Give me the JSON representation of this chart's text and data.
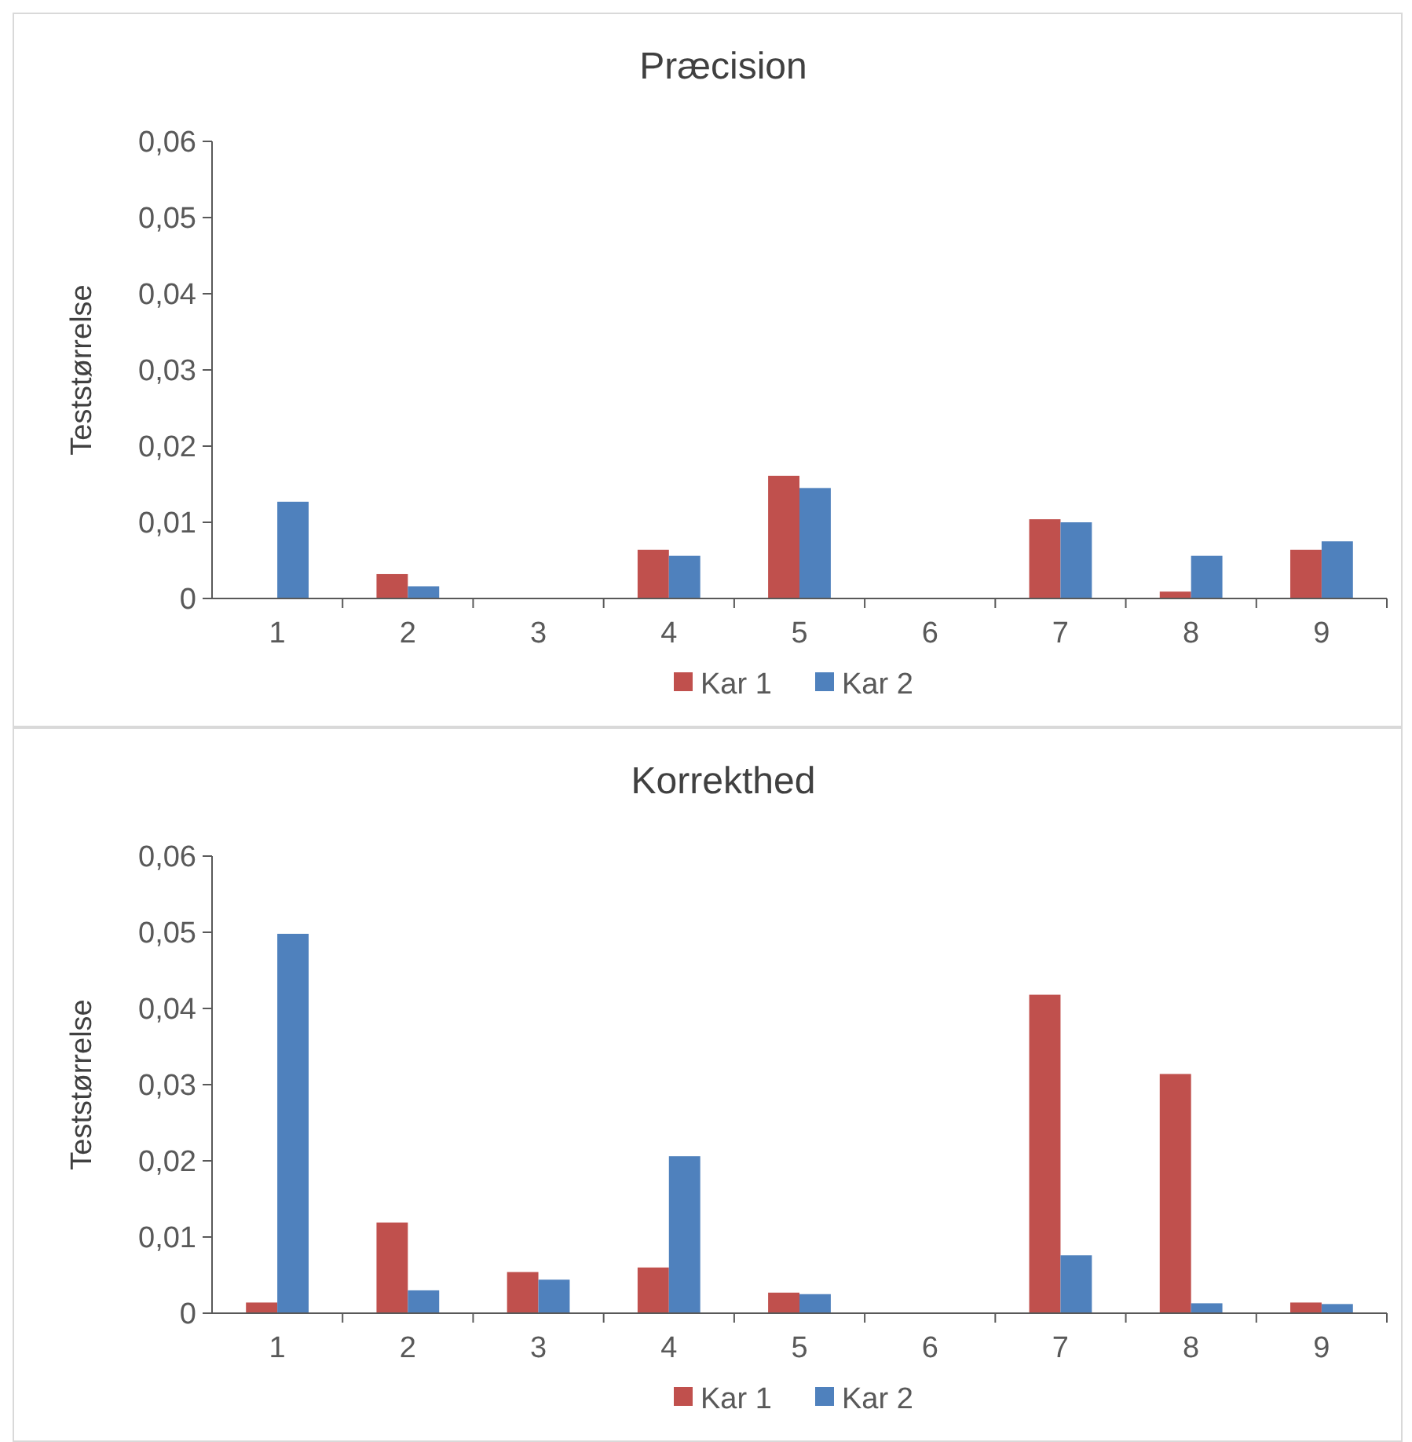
{
  "chart_data": [
    {
      "type": "bar",
      "title": "Præcision",
      "ylabel": "Teststørrelse",
      "categories": [
        "1",
        "2",
        "3",
        "4",
        "5",
        "6",
        "7",
        "8",
        "9"
      ],
      "series": [
        {
          "name": "Kar 1",
          "color": "#c0504d",
          "values": [
            0,
            0.0032,
            0,
            0.0064,
            0.0161,
            0,
            0.0104,
            0.0009,
            0.0064
          ]
        },
        {
          "name": "Kar 2",
          "color": "#4f81bd",
          "values": [
            0.0127,
            0.0016,
            0,
            0.0056,
            0.0145,
            0,
            0.01,
            0.0056,
            0.0075
          ]
        }
      ],
      "ylim": [
        0,
        0.06
      ],
      "yticks": [
        0,
        {
          "value": 0.01,
          "label": "0,01"
        },
        {
          "value": 0.02,
          "label": "0,02"
        },
        {
          "value": 0.03,
          "label": "0,03"
        },
        {
          "value": 0.04,
          "label": "0,04"
        },
        {
          "value": 0.05,
          "label": "0,05"
        },
        {
          "value": 0.06,
          "label": "0,06"
        }
      ],
      "grid": false,
      "legend": "bottom"
    },
    {
      "type": "bar",
      "title": "Korrekthed",
      "ylabel": "Teststørrelse",
      "categories": [
        "1",
        "2",
        "3",
        "4",
        "5",
        "6",
        "7",
        "8",
        "9"
      ],
      "series": [
        {
          "name": "Kar 1",
          "color": "#c0504d",
          "values": [
            0.0014,
            0.0119,
            0.0054,
            0.006,
            0.0027,
            0,
            0.0418,
            0.0314,
            0.0014
          ]
        },
        {
          "name": "Kar 2",
          "color": "#4f81bd",
          "values": [
            0.0498,
            0.003,
            0.0044,
            0.0206,
            0.0025,
            0,
            0.0076,
            0.0013,
            0.0012
          ]
        }
      ],
      "ylim": [
        0,
        0.06
      ],
      "yticks": [
        0,
        {
          "value": 0.01,
          "label": "0,01"
        },
        {
          "value": 0.02,
          "label": "0,02"
        },
        {
          "value": 0.03,
          "label": "0,03"
        },
        {
          "value": 0.04,
          "label": "0,04"
        },
        {
          "value": 0.05,
          "label": "0,05"
        },
        {
          "value": 0.06,
          "label": "0,06"
        }
      ],
      "grid": false,
      "legend": "bottom"
    }
  ]
}
